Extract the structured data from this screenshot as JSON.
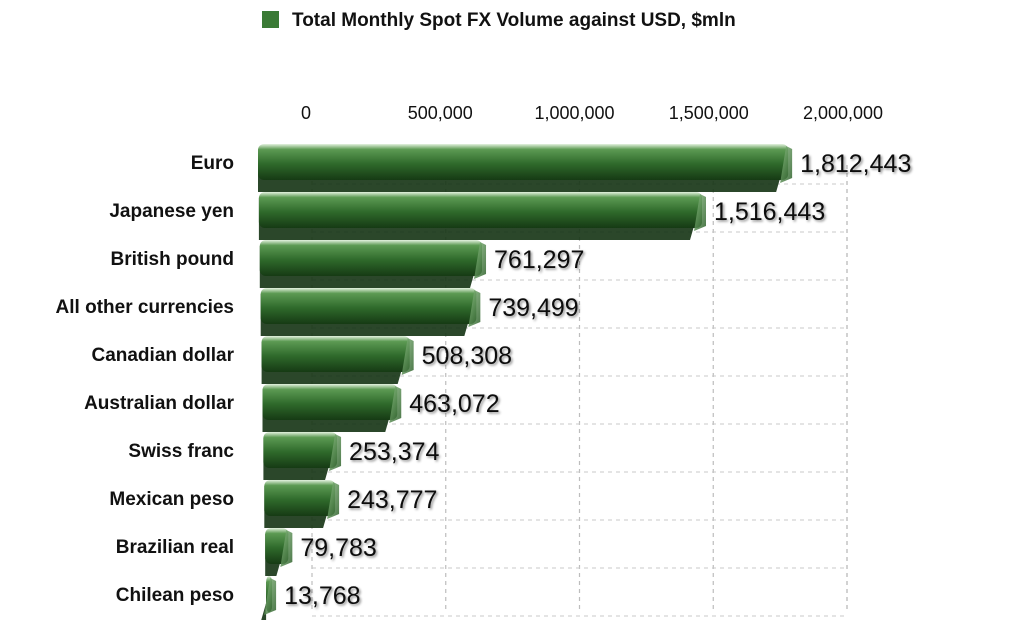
{
  "chart_data": {
    "type": "bar",
    "orientation": "horizontal",
    "style": "3d",
    "title": "",
    "xlabel": "",
    "ylabel": "",
    "categories": [
      "Euro",
      "Japanese yen",
      "British pound",
      "All other currencies",
      "Canadian dollar",
      "Australian dollar",
      "Swiss franc",
      "Mexican peso",
      "Brazilian real",
      "Chilean peso"
    ],
    "series": [
      {
        "name": "Total Monthly Spot FX Volume against USD, $mln",
        "color": "#3a7a35",
        "values": [
          1812443,
          1516443,
          761297,
          739499,
          508308,
          463072,
          253374,
          243777,
          79783,
          13768
        ],
        "value_labels": [
          "1,812,443",
          "1,516,443",
          "761,297",
          "739,499",
          "508,308",
          "463,072",
          "253,374",
          "243,777",
          "79,783",
          "13,768"
        ]
      }
    ],
    "xlim": [
      0,
      2000000
    ],
    "x_ticks": [
      0,
      500000,
      1000000,
      1500000,
      2000000
    ],
    "x_tick_labels": [
      "0",
      "500,000",
      "1,000,000",
      "1,500,000",
      "2,000,000"
    ],
    "axis_position": "top",
    "grid": true,
    "grid_style": "dashed",
    "legend": "top-center"
  }
}
